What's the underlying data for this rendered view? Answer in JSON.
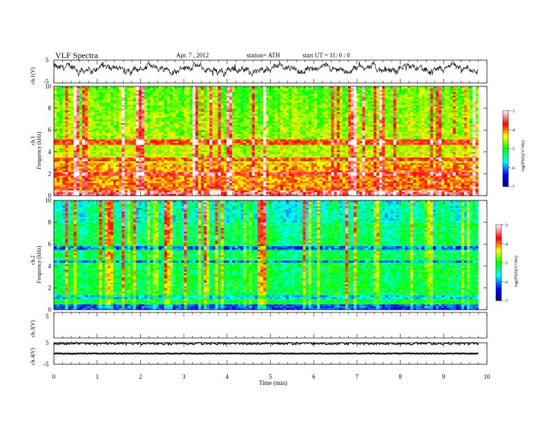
{
  "header": {
    "title": "VLF  Spectra",
    "date": "Apr. 7  , 2012",
    "station": "station= ATH",
    "start": "start  UT  =    11: 0  : 0"
  },
  "chart_data": [
    {
      "type": "line",
      "ylabel": "ch.1(V)",
      "ylim": [
        -5,
        5
      ],
      "yticks": [
        "5",
        "-5"
      ],
      "xlim": [
        0,
        10
      ],
      "note": "fluctuating waveform between approx. -2 and +4 V"
    },
    {
      "type": "heatmap",
      "ylabel_top": "ch.1",
      "ylabel": "Frequency  (kHz)",
      "ylim": [
        0,
        10
      ],
      "yticks": [
        "0",
        "2",
        "4",
        "6",
        "8",
        "10"
      ],
      "xlim": [
        0,
        9.8
      ],
      "colorbar": {
        "label": "log(PSD)(V²/Hz)",
        "ticks": [
          "-3",
          "-4",
          "-5",
          "-6",
          "-7"
        ],
        "range": [
          -7,
          -3
        ]
      }
    },
    {
      "type": "heatmap",
      "ylabel_top": "ch.2",
      "ylabel": "Frequency  (kHz)",
      "ylim": [
        0,
        10
      ],
      "yticks": [
        "0",
        "2",
        "4",
        "6",
        "8",
        "10"
      ],
      "xlim": [
        0,
        9.8
      ],
      "colorbar": {
        "label": "log(PSD)(V²/Hz)",
        "ticks": [
          "-3",
          "-4",
          "-5",
          "-6",
          "-7"
        ],
        "range": [
          -7,
          -3
        ]
      }
    },
    {
      "type": "line",
      "ylabel": "ch.3(V)",
      "ylim": [
        -5,
        5
      ],
      "yticks": [
        "5"
      ],
      "constant_value": 0
    },
    {
      "type": "line",
      "ylabel": "ch.4(V)",
      "ylim": [
        -5,
        5
      ],
      "yticks": [
        "5",
        "-5"
      ],
      "constant_value": 0
    }
  ],
  "x_axis": {
    "label": "Time  (min)",
    "ticks": [
      "0",
      "1",
      "2",
      "3",
      "4",
      "5",
      "6",
      "7",
      "8",
      "9",
      "10"
    ],
    "range": [
      0,
      10
    ]
  }
}
